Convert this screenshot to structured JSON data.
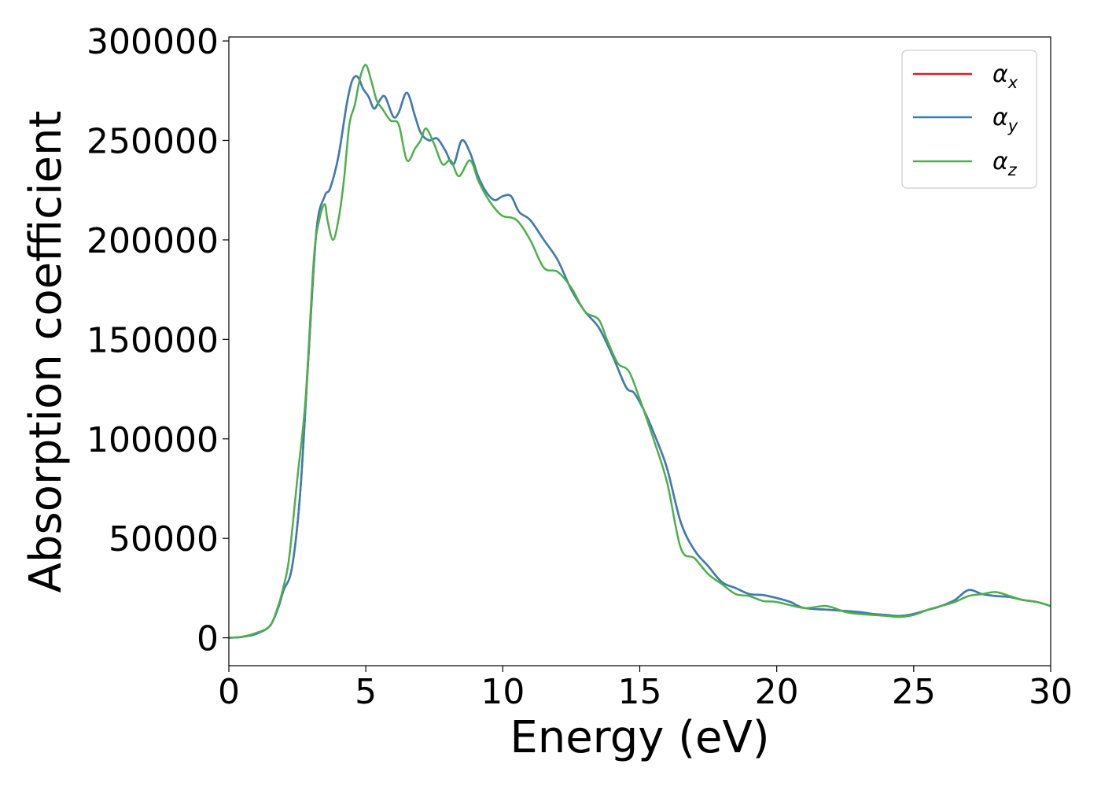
{
  "chart_data": {
    "type": "line",
    "title": "",
    "xlabel": "Energy (eV)",
    "ylabel": "Absorption coefficient",
    "xlim": [
      0,
      30
    ],
    "ylim": [
      -14000,
      302000
    ],
    "xticks": [
      0,
      5,
      10,
      15,
      20,
      25,
      30
    ],
    "yticks": [
      0,
      50000,
      100000,
      150000,
      200000,
      250000,
      300000
    ],
    "grid": false,
    "legend_position": "top-right",
    "series": [
      {
        "name": "αx",
        "symbol": "α",
        "subscript": "x",
        "color": "#e41a1c",
        "x": [
          0,
          0.5,
          1.0,
          1.5,
          1.8,
          2.0,
          2.3,
          2.6,
          2.9,
          3.2,
          3.5,
          3.7,
          4.0,
          4.3,
          4.5,
          4.7,
          4.9,
          5.1,
          5.3,
          5.5,
          5.7,
          6.0,
          6.2,
          6.5,
          6.8,
          7.0,
          7.3,
          7.6,
          7.9,
          8.2,
          8.5,
          8.8,
          9.1,
          9.4,
          9.7,
          10.0,
          10.3,
          10.6,
          11.0,
          11.5,
          12.0,
          12.5,
          13.0,
          13.5,
          14.0,
          14.5,
          14.8,
          15.2,
          15.6,
          16.0,
          16.5,
          17.0,
          17.5,
          18.0,
          18.5,
          19.0,
          19.5,
          20.0,
          20.5,
          21.0,
          22.0,
          23.0,
          23.5,
          24.0,
          24.5,
          25.0,
          25.5,
          26.0,
          26.5,
          27.0,
          27.5,
          28.0,
          28.5,
          29.0,
          29.5,
          30.0
        ],
        "y": [
          0,
          500,
          2000,
          6000,
          15000,
          24000,
          35000,
          72000,
          140000,
          205000,
          222000,
          226000,
          242000,
          268000,
          280000,
          282000,
          276000,
          272000,
          266000,
          270000,
          272000,
          262000,
          264000,
          274000,
          262000,
          254000,
          250000,
          251000,
          245000,
          238000,
          250000,
          244000,
          232000,
          224000,
          220000,
          222000,
          222000,
          214000,
          210000,
          200000,
          190000,
          175000,
          164000,
          156000,
          142000,
          126000,
          123000,
          113000,
          100000,
          85000,
          58000,
          44000,
          36000,
          28000,
          25000,
          22000,
          21500,
          20000,
          18000,
          15000,
          14000,
          13000,
          12000,
          11500,
          11000,
          12000,
          14000,
          16000,
          19000,
          24000,
          22000,
          21000,
          20500,
          19000,
          18000,
          16000
        ]
      },
      {
        "name": "αy",
        "symbol": "α",
        "subscript": "y",
        "color": "#377eb8",
        "x": [
          0,
          0.5,
          1.0,
          1.5,
          1.8,
          2.0,
          2.3,
          2.6,
          2.9,
          3.2,
          3.5,
          3.7,
          4.0,
          4.3,
          4.5,
          4.7,
          4.9,
          5.1,
          5.3,
          5.5,
          5.7,
          6.0,
          6.2,
          6.5,
          6.8,
          7.0,
          7.3,
          7.6,
          7.9,
          8.2,
          8.5,
          8.8,
          9.1,
          9.4,
          9.7,
          10.0,
          10.3,
          10.6,
          11.0,
          11.5,
          12.0,
          12.5,
          13.0,
          13.5,
          14.0,
          14.5,
          14.8,
          15.2,
          15.6,
          16.0,
          16.5,
          17.0,
          17.5,
          18.0,
          18.5,
          19.0,
          19.5,
          20.0,
          20.5,
          21.0,
          22.0,
          23.0,
          23.5,
          24.0,
          24.5,
          25.0,
          25.5,
          26.0,
          26.5,
          27.0,
          27.5,
          28.0,
          28.5,
          29.0,
          29.5,
          30.0
        ],
        "y": [
          0,
          500,
          2000,
          6000,
          15000,
          24000,
          35000,
          72000,
          140000,
          205000,
          222000,
          226000,
          242000,
          268000,
          280000,
          282000,
          276000,
          272000,
          266000,
          270000,
          272000,
          262000,
          264000,
          274000,
          262000,
          254000,
          250000,
          251000,
          245000,
          238000,
          250000,
          244000,
          232000,
          224000,
          220000,
          222000,
          222000,
          214000,
          210000,
          200000,
          190000,
          175000,
          164000,
          156000,
          142000,
          126000,
          123000,
          113000,
          100000,
          85000,
          58000,
          44000,
          36000,
          28000,
          25000,
          22000,
          21500,
          20000,
          18000,
          15000,
          14000,
          13000,
          12000,
          11500,
          11000,
          12000,
          14000,
          16000,
          19000,
          24000,
          22000,
          21000,
          20500,
          19000,
          18000,
          16000
        ]
      },
      {
        "name": "αz",
        "symbol": "α",
        "subscript": "z",
        "color": "#4daf4a",
        "x": [
          0,
          0.5,
          1.0,
          1.5,
          1.8,
          2.0,
          2.2,
          2.5,
          2.8,
          3.1,
          3.3,
          3.5,
          3.6,
          3.8,
          4.0,
          4.2,
          4.4,
          4.6,
          4.8,
          5.0,
          5.2,
          5.4,
          5.6,
          5.9,
          6.2,
          6.5,
          6.8,
          7.0,
          7.2,
          7.5,
          7.8,
          8.1,
          8.4,
          8.8,
          9.1,
          9.4,
          9.7,
          10.0,
          10.5,
          11.0,
          11.5,
          12.0,
          12.5,
          13.0,
          13.5,
          13.8,
          14.2,
          14.6,
          15.0,
          15.5,
          16.0,
          16.5,
          17.0,
          17.5,
          18.0,
          18.5,
          19.0,
          19.5,
          20.0,
          21.0,
          21.8,
          22.5,
          23.0,
          23.5,
          24.0,
          24.5,
          25.0,
          25.5,
          26.0,
          26.5,
          27.0,
          27.5,
          28.0,
          28.5,
          29.0,
          29.5,
          30.0
        ],
        "y": [
          0,
          600,
          2500,
          6000,
          16000,
          26000,
          40000,
          80000,
          120000,
          190000,
          210000,
          218000,
          210000,
          200000,
          210000,
          230000,
          258000,
          268000,
          282000,
          288000,
          280000,
          270000,
          266000,
          260000,
          258000,
          240000,
          246000,
          250000,
          256000,
          248000,
          238000,
          240000,
          232000,
          240000,
          230000,
          222000,
          216000,
          212000,
          210000,
          200000,
          186000,
          184000,
          176000,
          164000,
          160000,
          150000,
          138000,
          134000,
          120000,
          100000,
          78000,
          45000,
          40000,
          32000,
          27000,
          22000,
          21000,
          18500,
          18000,
          15000,
          16000,
          13000,
          12000,
          11500,
          11000,
          10500,
          11500,
          14000,
          16000,
          18000,
          21000,
          22000,
          23000,
          21000,
          19000,
          18000,
          16000
        ]
      }
    ]
  }
}
